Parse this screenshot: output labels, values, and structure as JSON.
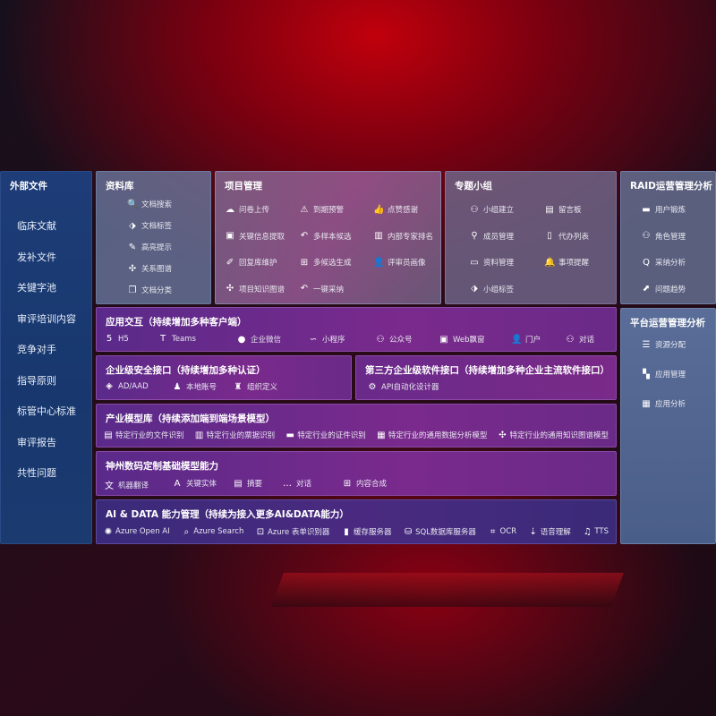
{
  "left": {
    "title": "外部文件",
    "items": [
      "临床文献",
      "发补文件",
      "关键字池",
      "审评培训内容",
      "竞争对手",
      "指导原则",
      "标管中心标准",
      "审评报告",
      "共性问题"
    ]
  },
  "docs": {
    "title": "资料库",
    "items": [
      {
        "icon": "doc-search",
        "label": "文档搜索"
      },
      {
        "icon": "tag",
        "label": "文档标签"
      },
      {
        "icon": "highlighter",
        "label": "高亮提示"
      },
      {
        "icon": "graph",
        "label": "关系图谱"
      },
      {
        "icon": "doc-copy",
        "label": "文档分类"
      }
    ]
  },
  "project": {
    "title": "项目管理",
    "items": [
      {
        "icon": "cloud-upload",
        "label": "问卷上传"
      },
      {
        "icon": "alarm",
        "label": "到期预警"
      },
      {
        "icon": "thumbs-up",
        "label": "点赞感谢"
      },
      {
        "icon": "window",
        "label": "关键信息提取"
      },
      {
        "icon": "reply",
        "label": "多样本候选"
      },
      {
        "icon": "ranking",
        "label": "内部专家排名"
      },
      {
        "icon": "pen",
        "label": "回复库维护"
      },
      {
        "icon": "puzzle",
        "label": "多候选生成"
      },
      {
        "icon": "user",
        "label": "评审员画像"
      },
      {
        "icon": "graph",
        "label": "项目知识图谱"
      },
      {
        "icon": "reply",
        "label": "一键采纳"
      }
    ]
  },
  "group": {
    "title": "专题小组",
    "items": [
      {
        "icon": "users",
        "label": "小组建立"
      },
      {
        "icon": "bbs",
        "label": "留言板"
      },
      {
        "icon": "user-add",
        "label": "成员管理"
      },
      {
        "icon": "clipboard",
        "label": "代办列表"
      },
      {
        "icon": "folder",
        "label": "资料管理"
      },
      {
        "icon": "bell",
        "label": "事项提醒"
      },
      {
        "icon": "tag",
        "label": "小组标签"
      }
    ]
  },
  "raid": {
    "title": "RAID运营管理分析",
    "items": [
      {
        "icon": "id-card",
        "label": "用户锻炼"
      },
      {
        "icon": "users",
        "label": "角色管理"
      },
      {
        "icon": "qa",
        "label": "采纳分析"
      },
      {
        "icon": "trend",
        "label": "问题趋势"
      }
    ]
  },
  "platform": {
    "title": "平台运营管理分析",
    "items": [
      {
        "icon": "list",
        "label": "资源分配"
      },
      {
        "icon": "apps",
        "label": "应用管理"
      },
      {
        "icon": "chart",
        "label": "应用分析"
      }
    ]
  },
  "app": {
    "title": "应用交互（持续增加多种客户端）",
    "items": [
      {
        "icon": "html5",
        "label": "H5"
      },
      {
        "icon": "teams",
        "label": "Teams"
      },
      {
        "icon": "wechat",
        "label": "企业微信"
      },
      {
        "icon": "mini-program",
        "label": "小程序"
      },
      {
        "icon": "users",
        "label": "公众号"
      },
      {
        "icon": "window",
        "label": "Web飘窗"
      },
      {
        "icon": "user",
        "label": "门户"
      },
      {
        "icon": "chat-users",
        "label": "对话"
      }
    ]
  },
  "security": {
    "title": "企业级安全接口（持续增加多种认证）",
    "items": [
      {
        "icon": "azure-ad",
        "label": "AD/AAD"
      },
      {
        "icon": "user-lock",
        "label": "本地账号"
      },
      {
        "icon": "org",
        "label": "组织定义"
      }
    ]
  },
  "thirdparty": {
    "title": "第三方企业级软件接口（持续增加多种企业主流软件接口）",
    "items": [
      {
        "icon": "gear",
        "label": "API自动化设计器"
      }
    ]
  },
  "industry": {
    "title": "产业模型库（持续添加端到端场景模型）",
    "items": [
      {
        "icon": "doc",
        "label": "特定行业的文件识别"
      },
      {
        "icon": "receipt",
        "label": "特定行业的票据识别"
      },
      {
        "icon": "id-card",
        "label": "特定行业的证件识别"
      },
      {
        "icon": "chart",
        "label": "特定行业的通用数据分析模型"
      },
      {
        "icon": "graph",
        "label": "特定行业的通用知识图谱模型"
      }
    ]
  },
  "base": {
    "title": "神州数码定制基础模型能力",
    "items": [
      {
        "icon": "translate",
        "label": "机器翻译"
      },
      {
        "icon": "entity",
        "label": "关键实体"
      },
      {
        "icon": "doc",
        "label": "摘要"
      },
      {
        "icon": "chat",
        "label": "对话"
      },
      {
        "icon": "puzzle",
        "label": "内容合成"
      }
    ]
  },
  "ai": {
    "title": "AI & DATA 能力管理（持续为接入更多AI&DATA能力）",
    "items": [
      {
        "icon": "openai",
        "label": "Azure Open AI"
      },
      {
        "icon": "search-doc",
        "label": "Azure Search"
      },
      {
        "icon": "form",
        "label": "Azure 表单识别器"
      },
      {
        "icon": "cache",
        "label": "缓存服务器"
      },
      {
        "icon": "database",
        "label": "SQL数据库服务器"
      },
      {
        "icon": "ocr",
        "label": "OCR"
      },
      {
        "icon": "speech",
        "label": "语音理解"
      },
      {
        "icon": "tts",
        "label": "TTS"
      }
    ]
  }
}
